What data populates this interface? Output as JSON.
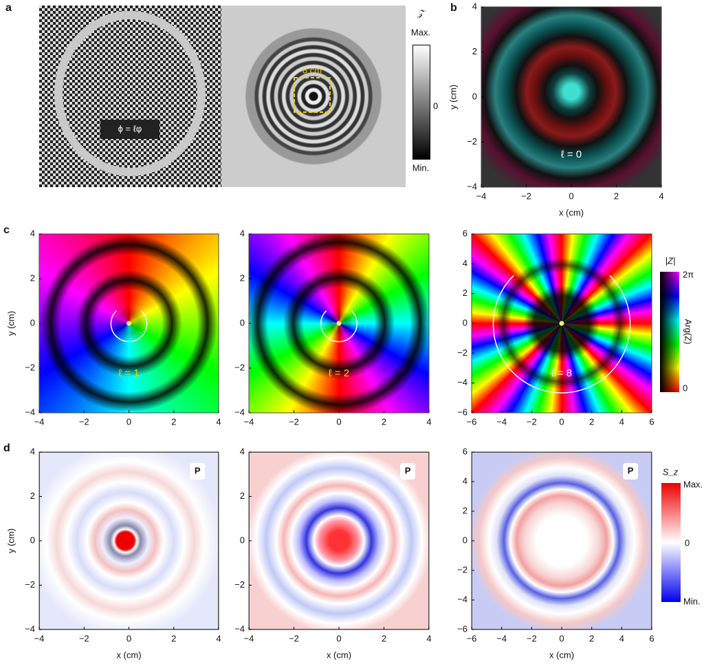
{
  "panel_a": {
    "label": "a",
    "phase_label": "ϕ = ℓφ",
    "scale_label": "8 cm",
    "colorbar": {
      "title": "𝒵",
      "max": "Max.",
      "zero": "0",
      "min": "Min."
    }
  },
  "panel_b": {
    "label": "b",
    "plot": {
      "xlim": [
        -4,
        4
      ],
      "ylim": [
        -4,
        4
      ],
      "xticks": [
        {
          "value": -4,
          "label": "−4"
        },
        {
          "value": -2,
          "label": "−2"
        },
        0,
        2,
        4
      ],
      "yticks": [
        {
          "value": -4,
          "label": "−4"
        },
        {
          "value": -2,
          "label": "−2"
        },
        0,
        2,
        4
      ],
      "xlabel": "x (cm)",
      "ylabel": "y (cm)",
      "annotation": "ℓ = 0"
    }
  },
  "panel_c": {
    "label": "c",
    "plots": [
      {
        "xlim": [
          -4,
          4
        ],
        "ylim": [
          -4,
          4
        ],
        "xticks": [
          {
            "value": -4,
            "label": "−4"
          },
          {
            "value": -2,
            "label": "−2"
          },
          0,
          2,
          4
        ],
        "yticks": [
          {
            "value": -4,
            "label": "−4"
          },
          {
            "value": -2,
            "label": "−2"
          },
          0,
          2,
          4
        ],
        "ylabel": "y (cm)",
        "annotation": "ℓ = 1"
      },
      {
        "xlim": [
          -4,
          4
        ],
        "ylim": [
          -4,
          4
        ],
        "xticks": [
          {
            "value": -4,
            "label": "−4"
          },
          {
            "value": -2,
            "label": "−2"
          },
          0,
          2,
          4
        ],
        "yticks": [
          {
            "value": -4,
            "label": "−4"
          },
          {
            "value": -2,
            "label": "−2"
          },
          0,
          2,
          4
        ],
        "annotation": "ℓ = 2"
      },
      {
        "xlim": [
          -6,
          6
        ],
        "ylim": [
          -6,
          6
        ],
        "xticks": [
          {
            "value": -6,
            "label": "−6"
          },
          {
            "value": -4,
            "label": "−4"
          },
          {
            "value": -2,
            "label": "−2"
          },
          0,
          2,
          4,
          6
        ],
        "yticks": [
          {
            "value": -6,
            "label": "−6"
          },
          {
            "value": -4,
            "label": "−4"
          },
          {
            "value": -2,
            "label": "−2"
          },
          0,
          2,
          4,
          6
        ],
        "annotation": "ℓ = 8"
      }
    ],
    "colorbar": {
      "title": "|Z|",
      "max": "2π",
      "axis": "Arg(Z)",
      "min": "0"
    }
  },
  "panel_d": {
    "label": "d",
    "plots": [
      {
        "xlim": [
          -4,
          4
        ],
        "ylim": [
          -4,
          4
        ],
        "xticks": [
          {
            "value": -4,
            "label": "−4"
          },
          {
            "value": -2,
            "label": "−2"
          },
          0,
          2,
          4
        ],
        "yticks": [
          {
            "value": -4,
            "label": "−4"
          },
          {
            "value": -2,
            "label": "−2"
          },
          0,
          2,
          4
        ],
        "xlabel": "x (cm)",
        "ylabel": "y (cm)",
        "marker": "P"
      },
      {
        "xlim": [
          -4,
          4
        ],
        "ylim": [
          -4,
          4
        ],
        "xticks": [
          {
            "value": -4,
            "label": "−4"
          },
          {
            "value": -2,
            "label": "−2"
          },
          0,
          2,
          4
        ],
        "yticks": [
          {
            "value": -4,
            "label": "−4"
          },
          {
            "value": -2,
            "label": "−2"
          },
          0,
          2,
          4
        ],
        "xlabel": "x (cm)",
        "marker": "P"
      },
      {
        "xlim": [
          -6,
          6
        ],
        "ylim": [
          -6,
          6
        ],
        "xticks": [
          {
            "value": -6,
            "label": "−6"
          },
          {
            "value": -4,
            "label": "−4"
          },
          {
            "value": -2,
            "label": "−2"
          },
          0,
          2,
          4,
          6
        ],
        "yticks": [
          {
            "value": -6,
            "label": "−6"
          },
          {
            "value": -4,
            "label": "−4"
          },
          {
            "value": -2,
            "label": "−2"
          },
          0,
          2,
          4,
          6
        ],
        "xlabel": "x (cm)",
        "marker": "P"
      }
    ],
    "colorbar": {
      "title": "S_z",
      "max": "Max.",
      "zero": "0",
      "min": "Min."
    }
  }
}
